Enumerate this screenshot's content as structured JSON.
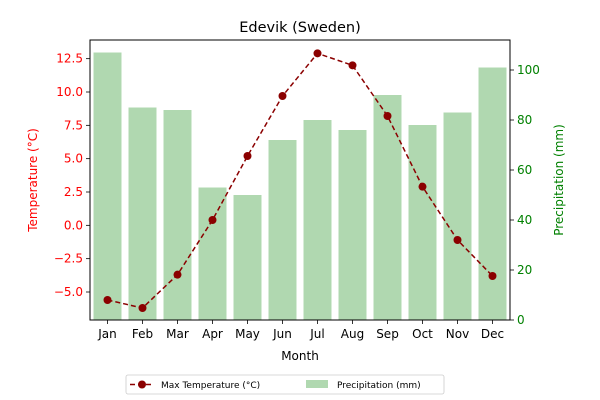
{
  "chart_data": {
    "type": "bar+line",
    "title": "Edevik (Sweden)",
    "xlabel": "Month",
    "ylabel_left": "Temperature (°C)",
    "ylabel_right": "Precipitation (mm)",
    "categories": [
      "Jan",
      "Feb",
      "Mar",
      "Apr",
      "May",
      "Jun",
      "Jul",
      "Aug",
      "Sep",
      "Oct",
      "Nov",
      "Dec"
    ],
    "ylim_left": [
      -7.1,
      13.9
    ],
    "ylim_right": [
      0,
      112
    ],
    "yticks_left": [
      "−5.0",
      "−2.5",
      "0.0",
      "2.5",
      "5.0",
      "7.5",
      "10.0",
      "12.5"
    ],
    "yticks_left_values": [
      -5,
      -2.5,
      0,
      2.5,
      5,
      7.5,
      10,
      12.5
    ],
    "yticks_right": [
      "0",
      "20",
      "40",
      "60",
      "80",
      "100"
    ],
    "yticks_right_values": [
      0,
      20,
      40,
      60,
      80,
      100
    ],
    "series": [
      {
        "name": "Max Temperature (°C)",
        "type": "line",
        "axis": "left",
        "color": "#8b0000",
        "style": "dashed",
        "marker": "circle",
        "values": [
          -5.6,
          -6.2,
          -3.7,
          0.4,
          5.2,
          9.7,
          12.9,
          12.0,
          8.2,
          2.9,
          -1.1,
          -3.8
        ]
      },
      {
        "name": "Precipitation (mm)",
        "type": "bar",
        "axis": "right",
        "color": "#b0d8b0",
        "values": [
          107,
          85,
          84,
          53,
          50,
          72,
          80,
          76,
          90,
          78,
          83,
          101
        ]
      }
    ],
    "legend": "bottom-center",
    "grid": false,
    "left_axis_color": "#ff0000",
    "right_axis_color": "#008000"
  }
}
